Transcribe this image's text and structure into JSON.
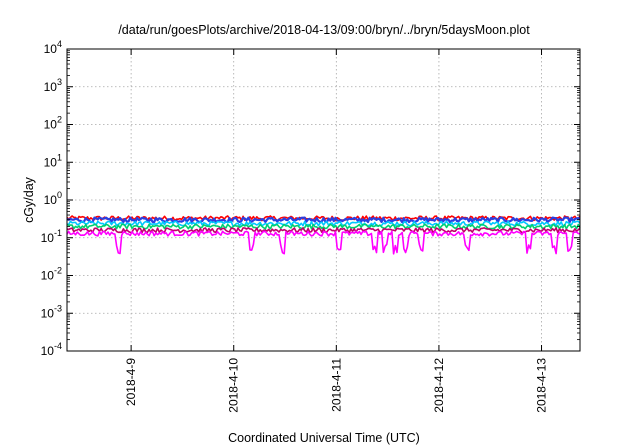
{
  "chart_data": {
    "type": "line",
    "title": "/data/run/goesPlots/archive/2018-04-13/09:00/bryn/../bryn/5daysMoon.plot",
    "xlabel": "Coordinated Universal Time (UTC)",
    "ylabel": "cGy/day",
    "y_scale": "log",
    "ylim": [
      0.0001,
      10000
    ],
    "y_ticks": [
      {
        "value": 0.0001,
        "base": "10",
        "exp": "-4"
      },
      {
        "value": 0.001,
        "base": "10",
        "exp": "-3"
      },
      {
        "value": 0.01,
        "base": "10",
        "exp": "-2"
      },
      {
        "value": 0.1,
        "base": "10",
        "exp": "-1"
      },
      {
        "value": 1,
        "base": "10",
        "exp": "0"
      },
      {
        "value": 10,
        "base": "10",
        "exp": "1"
      },
      {
        "value": 100,
        "base": "10",
        "exp": "2"
      },
      {
        "value": 1000,
        "base": "10",
        "exp": "3"
      },
      {
        "value": 10000,
        "base": "10",
        "exp": "4"
      }
    ],
    "xlim": [
      "2018-04-08 09:00",
      "2018-04-13 09:00"
    ],
    "x_ticks": [
      {
        "value": "2018-04-09 00:00",
        "label": "2018-4-9"
      },
      {
        "value": "2018-04-10 00:00",
        "label": "2018-4-10"
      },
      {
        "value": "2018-04-11 00:00",
        "label": "2018-4-11"
      },
      {
        "value": "2018-04-12 00:00",
        "label": "2018-4-12"
      },
      {
        "value": "2018-04-13 00:00",
        "label": "2018-4-13"
      }
    ],
    "grid": true,
    "series": [
      {
        "color": "#ff0000",
        "level": 0.33
      },
      {
        "color": "#2a3fe0",
        "level": 0.3
      },
      {
        "color": "#00c8ff",
        "level": 0.24
      },
      {
        "color": "#00d070",
        "level": 0.2
      },
      {
        "color": "#c0006a",
        "level": 0.16
      },
      {
        "color": "#ff00ff",
        "level": 0.13
      }
    ]
  }
}
